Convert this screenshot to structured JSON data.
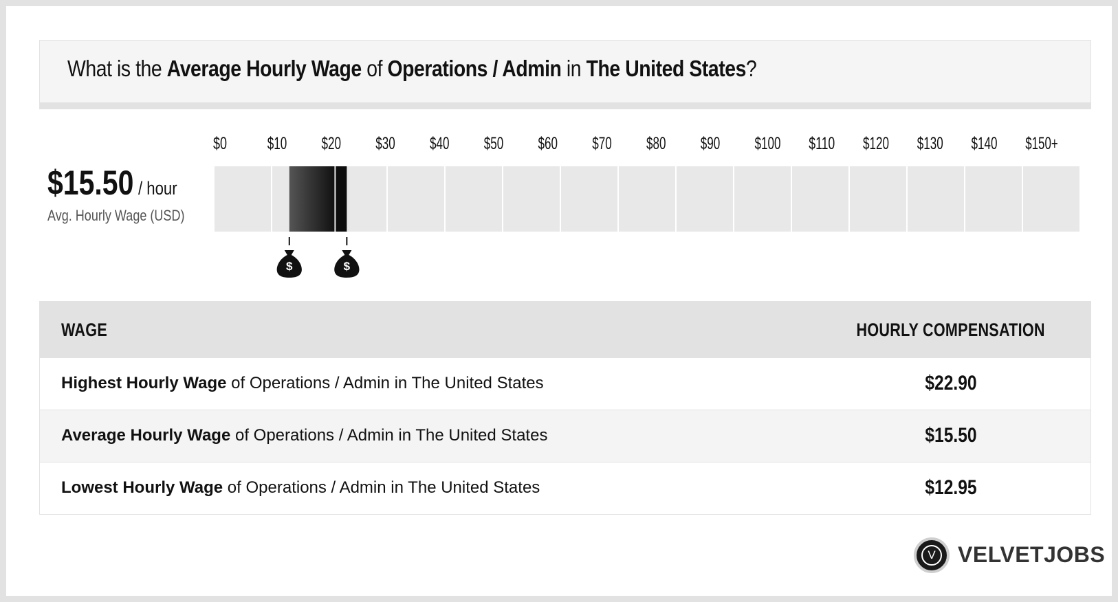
{
  "title": {
    "prefix": "What is the ",
    "metric": "Average Hourly Wage",
    "of": " of ",
    "job": "Operations / Admin",
    "in": " in ",
    "location": "The United States",
    "suffix": "?"
  },
  "average": {
    "value": "$15.50",
    "unit": "/ hour",
    "caption": "Avg. Hourly Wage (USD)"
  },
  "chart_data": {
    "type": "bar",
    "orientation": "horizontal-range",
    "x_tick_labels": [
      "$0",
      "$10",
      "$20",
      "$30",
      "$40",
      "$50",
      "$60",
      "$70",
      "$80",
      "$90",
      "$100",
      "$110",
      "$120",
      "$130",
      "$140",
      "$150+"
    ],
    "xlim": [
      0,
      150
    ],
    "range_low": 12.95,
    "range_avg": 15.5,
    "range_high": 22.9,
    "markers": [
      12.95,
      22.9
    ],
    "marker_icon": "money-bag-icon",
    "colors": {
      "track": "#e8e8e8",
      "range_gradient_start": "#555555",
      "range_gradient_end": "#111111",
      "upper_segment": "#0d0d0d",
      "marker": "#111111"
    }
  },
  "table": {
    "header_left": "WAGE",
    "header_right": "HOURLY COMPENSATION",
    "rows": [
      {
        "bold": "Highest Hourly Wage",
        "rest": " of Operations / Admin in The United States",
        "value": "$22.90"
      },
      {
        "bold": "Average Hourly Wage",
        "rest": " of Operations / Admin in The United States",
        "value": "$15.50"
      },
      {
        "bold": "Lowest Hourly Wage",
        "rest": " of Operations / Admin in The United States",
        "value": "$12.95"
      }
    ]
  },
  "logo": {
    "mark": "V",
    "text": "VELVETJOBS"
  }
}
